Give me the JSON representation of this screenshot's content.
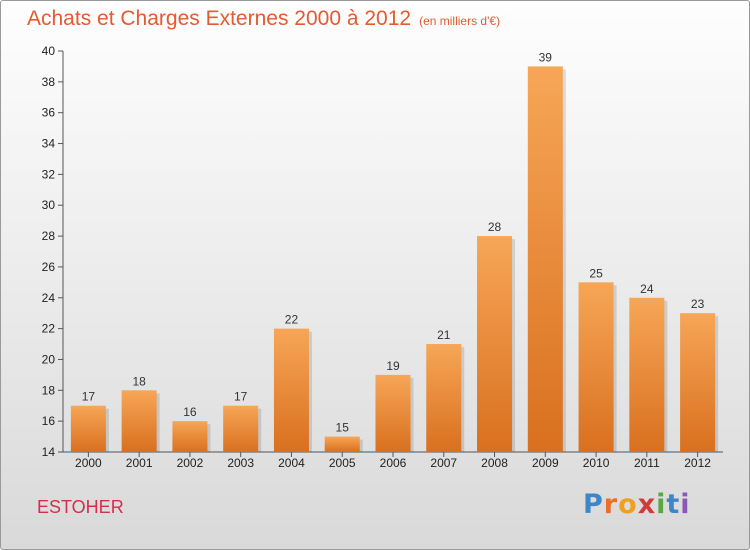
{
  "header": {
    "title": "Achats et Charges Externes 2000 à 2012",
    "unit": "(en milliers d'€)"
  },
  "footer": {
    "place": "ESTOHER",
    "logo": "Proxiti"
  },
  "colors": {
    "title": "#e55a2e",
    "bar_top": "#f7a657",
    "bar_bottom": "#d8701f",
    "place": "#d0304e"
  },
  "chart_data": {
    "type": "bar",
    "title": "Achats et Charges Externes 2000 à 2012",
    "subtitle": "(en milliers d'€)",
    "xlabel": "",
    "ylabel": "",
    "categories": [
      "2000",
      "2001",
      "2002",
      "2003",
      "2004",
      "2005",
      "2006",
      "2007",
      "2008",
      "2009",
      "2010",
      "2011",
      "2012"
    ],
    "values": [
      17,
      18,
      16,
      17,
      22,
      15,
      19,
      21,
      28,
      39,
      25,
      24,
      23
    ],
    "ylim": [
      14,
      40
    ],
    "yticks": [
      14,
      16,
      18,
      20,
      22,
      24,
      26,
      28,
      30,
      32,
      34,
      36,
      38,
      40
    ],
    "grid": false,
    "data_labels": true
  }
}
